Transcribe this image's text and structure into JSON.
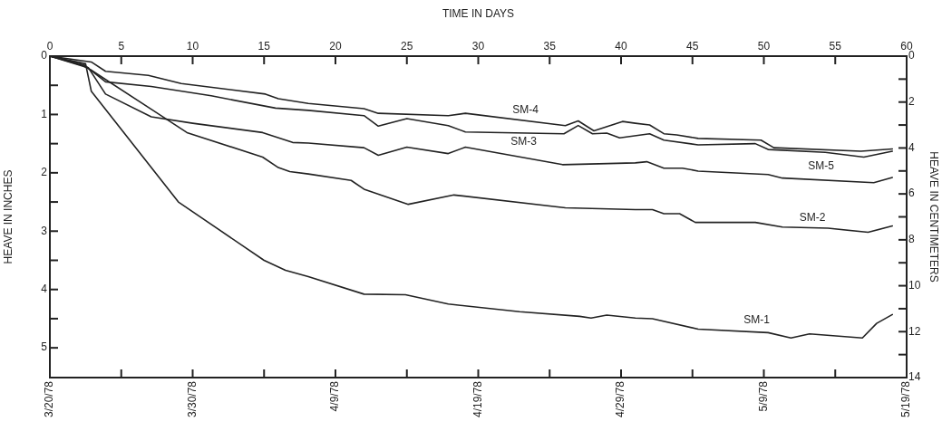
{
  "chart_data": {
    "type": "line",
    "xlabel": "TIME IN DAYS",
    "ylabel": "HEAVE IN INCHES",
    "y2label": "HEAVE IN CENTIMETERS",
    "xlim": [
      0,
      60
    ],
    "x2lim": [
      "1978-03-20",
      "1978-05-19"
    ],
    "x2ticks": [
      {
        "value": "1978-03-20",
        "label": "3/20/78"
      },
      {
        "value": "1978-03-25",
        "label": null
      },
      {
        "value": "1978-03-30",
        "label": "3/30/78"
      },
      {
        "value": "1978-04-04",
        "label": null
      },
      {
        "value": "1978-04-09",
        "label": "4/9/78"
      },
      {
        "value": "1978-04-14",
        "label": null
      },
      {
        "value": "1978-04-19",
        "label": "4/19/78"
      },
      {
        "value": "1978-04-24",
        "label": null
      },
      {
        "value": "1978-04-29",
        "label": "4/29/78"
      },
      {
        "value": "1978-05-04",
        "label": null
      },
      {
        "value": "1978-05-09",
        "label": "5/9/78"
      },
      {
        "value": "1978-05-14",
        "label": null
      },
      {
        "value": "1978-05-19",
        "label": "5/19/78"
      }
    ],
    "xticks": [
      0,
      5,
      10,
      15,
      20,
      25,
      30,
      35,
      40,
      45,
      50,
      55,
      60
    ],
    "ylim": [
      5.51,
      0
    ],
    "yticks": [
      0,
      {
        "value": 0.5,
        "label": null
      },
      1,
      {
        "value": 1.5,
        "label": null
      },
      2,
      {
        "value": 2.5,
        "label": null
      },
      3,
      {
        "value": 3.5,
        "label": null
      },
      4,
      {
        "value": 4.5,
        "label": null
      },
      5
    ],
    "y2lim": [
      14,
      0
    ],
    "y2ticks": [
      0,
      {
        "value": 1,
        "label": null
      },
      2,
      {
        "value": 3,
        "label": null
      },
      4,
      {
        "value": 5,
        "label": null
      },
      6,
      {
        "value": 7,
        "label": null
      },
      8,
      {
        "value": 9,
        "label": null
      },
      10,
      {
        "value": 11,
        "label": null
      },
      12,
      {
        "value": 13,
        "label": null
      },
      14
    ],
    "grid": false,
    "legend": false,
    "marker": "none",
    "line_style": "solid",
    "series": [
      {
        "name": "SM-1",
        "color": "#222222",
        "x": [
          0,
          2.5,
          2.9,
          9,
          15,
          16.5,
          18.1,
          22,
          24.9,
          27.9,
          32.9,
          37.1,
          37.9,
          39,
          41,
          42.2,
          45.4,
          50.3,
          51.9,
          53.2,
          56.9,
          57.9,
          59
        ],
        "values": [
          0,
          0.13,
          0.6,
          2.5,
          3.5,
          3.67,
          3.78,
          4.08,
          4.09,
          4.25,
          4.38,
          4.46,
          4.49,
          4.44,
          4.49,
          4.5,
          4.68,
          4.74,
          4.83,
          4.76,
          4.83,
          4.58,
          4.43
        ]
      },
      {
        "name": "SM-2",
        "color": "#222222",
        "x": [
          0,
          2.2,
          2.9,
          7.1,
          9.6,
          14.9,
          16,
          16.8,
          18.1,
          21.1,
          22,
          25.1,
          28.3,
          36.1,
          41,
          42.2,
          43,
          44.1,
          45.2,
          49.4,
          51.3,
          54.5,
          57.3,
          59
        ],
        "values": [
          0,
          0.15,
          0.24,
          0.91,
          1.31,
          1.73,
          1.91,
          1.98,
          2.02,
          2.13,
          2.28,
          2.54,
          2.38,
          2.6,
          2.63,
          2.63,
          2.7,
          2.7,
          2.85,
          2.85,
          2.93,
          2.95,
          3.02,
          2.91
        ]
      },
      {
        "name": "SM-5",
        "color": "#222222",
        "x": [
          0,
          2.7,
          3.9,
          7.1,
          10,
          14.9,
          17,
          18.1,
          22,
          23,
          25,
          27.9,
          29.1,
          35.9,
          41,
          41.8,
          43,
          44.3,
          45.4,
          50.3,
          51.3,
          57.7,
          59
        ],
        "values": [
          0,
          0.2,
          0.65,
          1.04,
          1.15,
          1.31,
          1.48,
          1.49,
          1.57,
          1.7,
          1.56,
          1.67,
          1.56,
          1.86,
          1.83,
          1.81,
          1.92,
          1.92,
          1.97,
          2.03,
          2.09,
          2.17,
          2.08
        ]
      },
      {
        "name": "SM-3",
        "color": "#222222",
        "x": [
          0,
          2.4,
          3.9,
          7.1,
          11.3,
          15.8,
          18.1,
          22,
          23,
          25,
          27.9,
          29.1,
          36,
          37,
          38,
          39,
          39.9,
          42,
          43,
          45.4,
          49.4,
          50.3,
          54.3,
          57,
          59
        ],
        "values": [
          0,
          0.15,
          0.44,
          0.52,
          0.68,
          0.89,
          0.93,
          1.02,
          1.2,
          1.07,
          1.19,
          1.3,
          1.33,
          1.19,
          1.33,
          1.32,
          1.4,
          1.33,
          1.44,
          1.52,
          1.5,
          1.6,
          1.65,
          1.73,
          1.63
        ]
      },
      {
        "name": "SM-4",
        "color": "#222222",
        "x": [
          0,
          2.9,
          3.9,
          6.9,
          9.2,
          15.1,
          16,
          18.1,
          22,
          23,
          27.9,
          29.1,
          36.1,
          37,
          38.1,
          40.1,
          41,
          42,
          43,
          43.9,
          45.4,
          49.8,
          50.7,
          56.8,
          59
        ],
        "values": [
          0,
          0.1,
          0.26,
          0.33,
          0.47,
          0.65,
          0.73,
          0.81,
          0.9,
          0.98,
          1.02,
          0.98,
          1.19,
          1.11,
          1.28,
          1.12,
          1.15,
          1.18,
          1.33,
          1.35,
          1.41,
          1.44,
          1.57,
          1.63,
          1.59
        ]
      }
    ]
  }
}
